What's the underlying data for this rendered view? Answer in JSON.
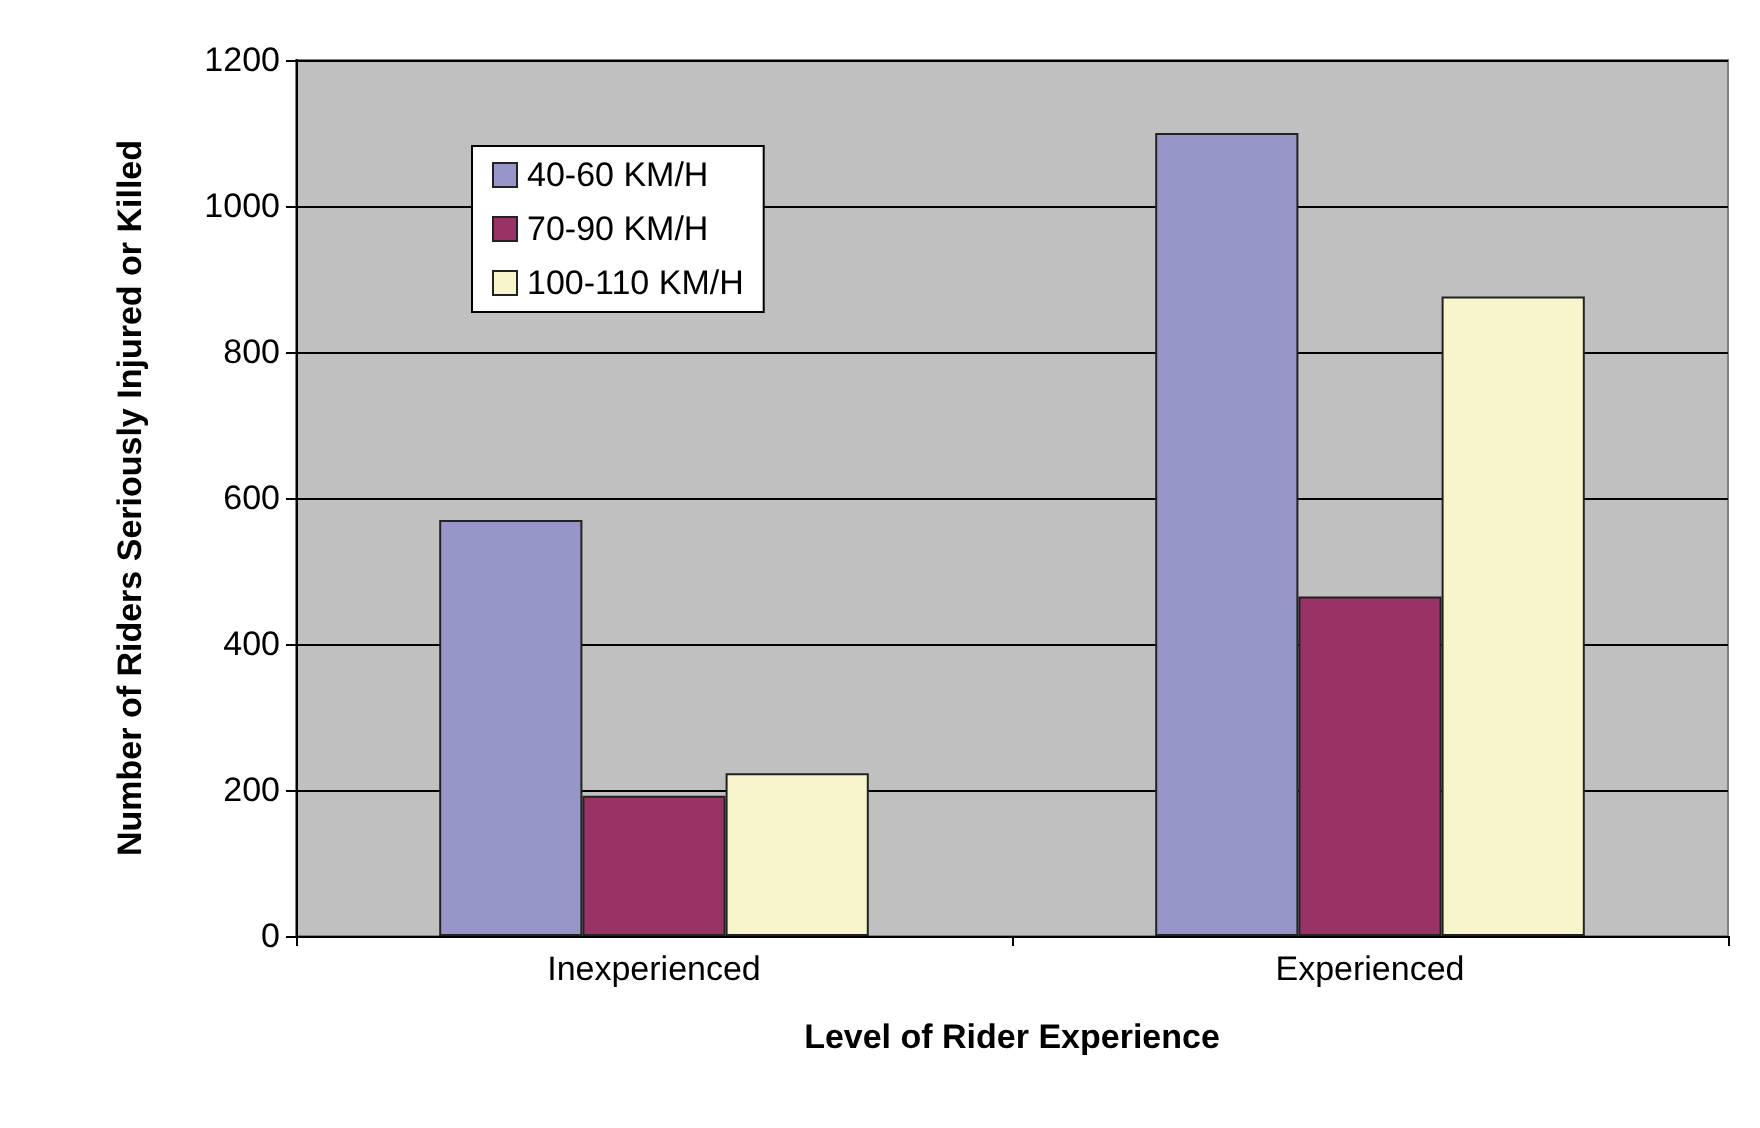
{
  "chart_data": {
    "type": "bar",
    "xlabel": "Level of Rider Experience",
    "ylabel": "Number of Riders Seriously Injured or Killed",
    "categories": [
      "Inexperienced",
      "Experienced"
    ],
    "series": [
      {
        "name": "40-60 KM/H",
        "color": "#9696c8",
        "values": [
          570,
          1100
        ]
      },
      {
        "name": "70-90 KM/H",
        "color": "#993366",
        "values": [
          192,
          465
        ]
      },
      {
        "name": "100-110 KM/H",
        "color": "#f8f5cc",
        "values": [
          223,
          876
        ]
      }
    ],
    "ylim": [
      0,
      1200
    ],
    "yticks": [
      0,
      200,
      400,
      600,
      800,
      1000,
      1200
    ],
    "grid": "y",
    "legend": "top left"
  }
}
